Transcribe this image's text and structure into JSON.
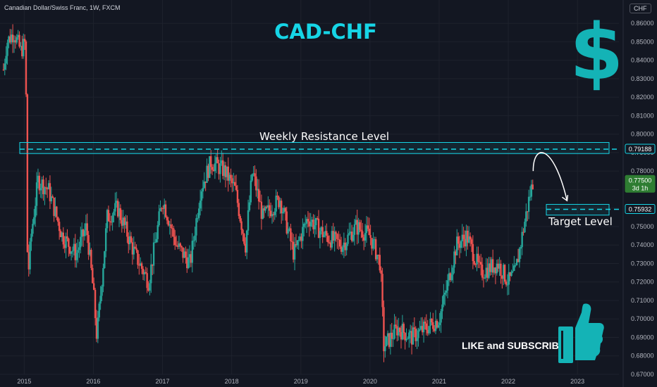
{
  "header": {
    "instrument": "Canadian Dollar/Swiss Franc, 1W, FXCM",
    "currency_badge": "CHF"
  },
  "annotations": {
    "title": "CAD-CHF",
    "dollar_symbol": "$",
    "resistance_label": "Weekly Resistance Level",
    "target_label": "Target Level",
    "cta": "LIKE and SUBSCRIBE",
    "cta_icon": "thumbs-up-icon"
  },
  "colors": {
    "background": "#131722",
    "up": "#26a69a",
    "down": "#ef5350",
    "accent": "#16d5e6",
    "badge_dark": "#131722",
    "current_price_badge": "#2e7d32"
  },
  "price_badges": {
    "resistance": "0.79188",
    "current": "0.77500",
    "current_countdown": "3d 1h",
    "target": "0.75932"
  },
  "chart_data": {
    "type": "candlestick",
    "title": "CAD-CHF",
    "timeframe": "1W",
    "x_ticks": [
      "2015",
      "2016",
      "2017",
      "2018",
      "2019",
      "2020",
      "2021",
      "2022",
      "2023"
    ],
    "y_ticks": [
      "0.86000",
      "0.85000",
      "0.84000",
      "0.83000",
      "0.82000",
      "0.81000",
      "0.80000",
      "0.79000",
      "0.78000",
      "0.77000",
      "0.76000",
      "0.75000",
      "0.74000",
      "0.73000",
      "0.72000",
      "0.71000",
      "0.70000",
      "0.69000",
      "0.68000",
      "0.67000"
    ],
    "ylim": [
      0.67,
      0.865
    ],
    "xlim": [
      2014.65,
      2023.6
    ],
    "path_keypoints": [
      {
        "x": 2014.7,
        "y": 0.835
      },
      {
        "x": 2014.75,
        "y": 0.85
      },
      {
        "x": 2014.85,
        "y": 0.855
      },
      {
        "x": 2014.95,
        "y": 0.845
      },
      {
        "x": 2015.02,
        "y": 0.85
      },
      {
        "x": 2015.05,
        "y": 0.72
      },
      {
        "x": 2015.1,
        "y": 0.745
      },
      {
        "x": 2015.2,
        "y": 0.775
      },
      {
        "x": 2015.35,
        "y": 0.77
      },
      {
        "x": 2015.55,
        "y": 0.745
      },
      {
        "x": 2015.75,
        "y": 0.735
      },
      {
        "x": 2015.9,
        "y": 0.75
      },
      {
        "x": 2016.0,
        "y": 0.715
      },
      {
        "x": 2016.05,
        "y": 0.69
      },
      {
        "x": 2016.2,
        "y": 0.755
      },
      {
        "x": 2016.35,
        "y": 0.76
      },
      {
        "x": 2016.6,
        "y": 0.735
      },
      {
        "x": 2016.8,
        "y": 0.72
      },
      {
        "x": 2017.0,
        "y": 0.765
      },
      {
        "x": 2017.2,
        "y": 0.74
      },
      {
        "x": 2017.4,
        "y": 0.73
      },
      {
        "x": 2017.55,
        "y": 0.77
      },
      {
        "x": 2017.7,
        "y": 0.785
      },
      {
        "x": 2017.9,
        "y": 0.78
      },
      {
        "x": 2018.05,
        "y": 0.77
      },
      {
        "x": 2018.2,
        "y": 0.74
      },
      {
        "x": 2018.3,
        "y": 0.78
      },
      {
        "x": 2018.45,
        "y": 0.755
      },
      {
        "x": 2018.7,
        "y": 0.765
      },
      {
        "x": 2018.9,
        "y": 0.735
      },
      {
        "x": 2019.1,
        "y": 0.755
      },
      {
        "x": 2019.35,
        "y": 0.745
      },
      {
        "x": 2019.6,
        "y": 0.74
      },
      {
        "x": 2019.8,
        "y": 0.75
      },
      {
        "x": 2020.0,
        "y": 0.745
      },
      {
        "x": 2020.15,
        "y": 0.73
      },
      {
        "x": 2020.2,
        "y": 0.685
      },
      {
        "x": 2020.4,
        "y": 0.695
      },
      {
        "x": 2020.6,
        "y": 0.69
      },
      {
        "x": 2020.8,
        "y": 0.695
      },
      {
        "x": 2021.0,
        "y": 0.7
      },
      {
        "x": 2021.1,
        "y": 0.715
      },
      {
        "x": 2021.25,
        "y": 0.74
      },
      {
        "x": 2021.4,
        "y": 0.745
      },
      {
        "x": 2021.6,
        "y": 0.725
      },
      {
        "x": 2021.85,
        "y": 0.73
      },
      {
        "x": 2022.0,
        "y": 0.72
      },
      {
        "x": 2022.1,
        "y": 0.725
      },
      {
        "x": 2022.2,
        "y": 0.745
      },
      {
        "x": 2022.3,
        "y": 0.765
      },
      {
        "x": 2022.36,
        "y": 0.775
      }
    ],
    "resistance_zone": [
      0.7895,
      0.7955
    ],
    "resistance_level": 0.79188,
    "target_zone": [
      0.7562,
      0.762
    ],
    "target_level": 0.75932,
    "current_price": 0.775,
    "projection": {
      "from": {
        "x": 2022.36,
        "y": 0.78
      },
      "peak": {
        "x": 2022.55,
        "y": 0.79
      },
      "to": {
        "x": 2022.85,
        "y": 0.764
      }
    }
  }
}
